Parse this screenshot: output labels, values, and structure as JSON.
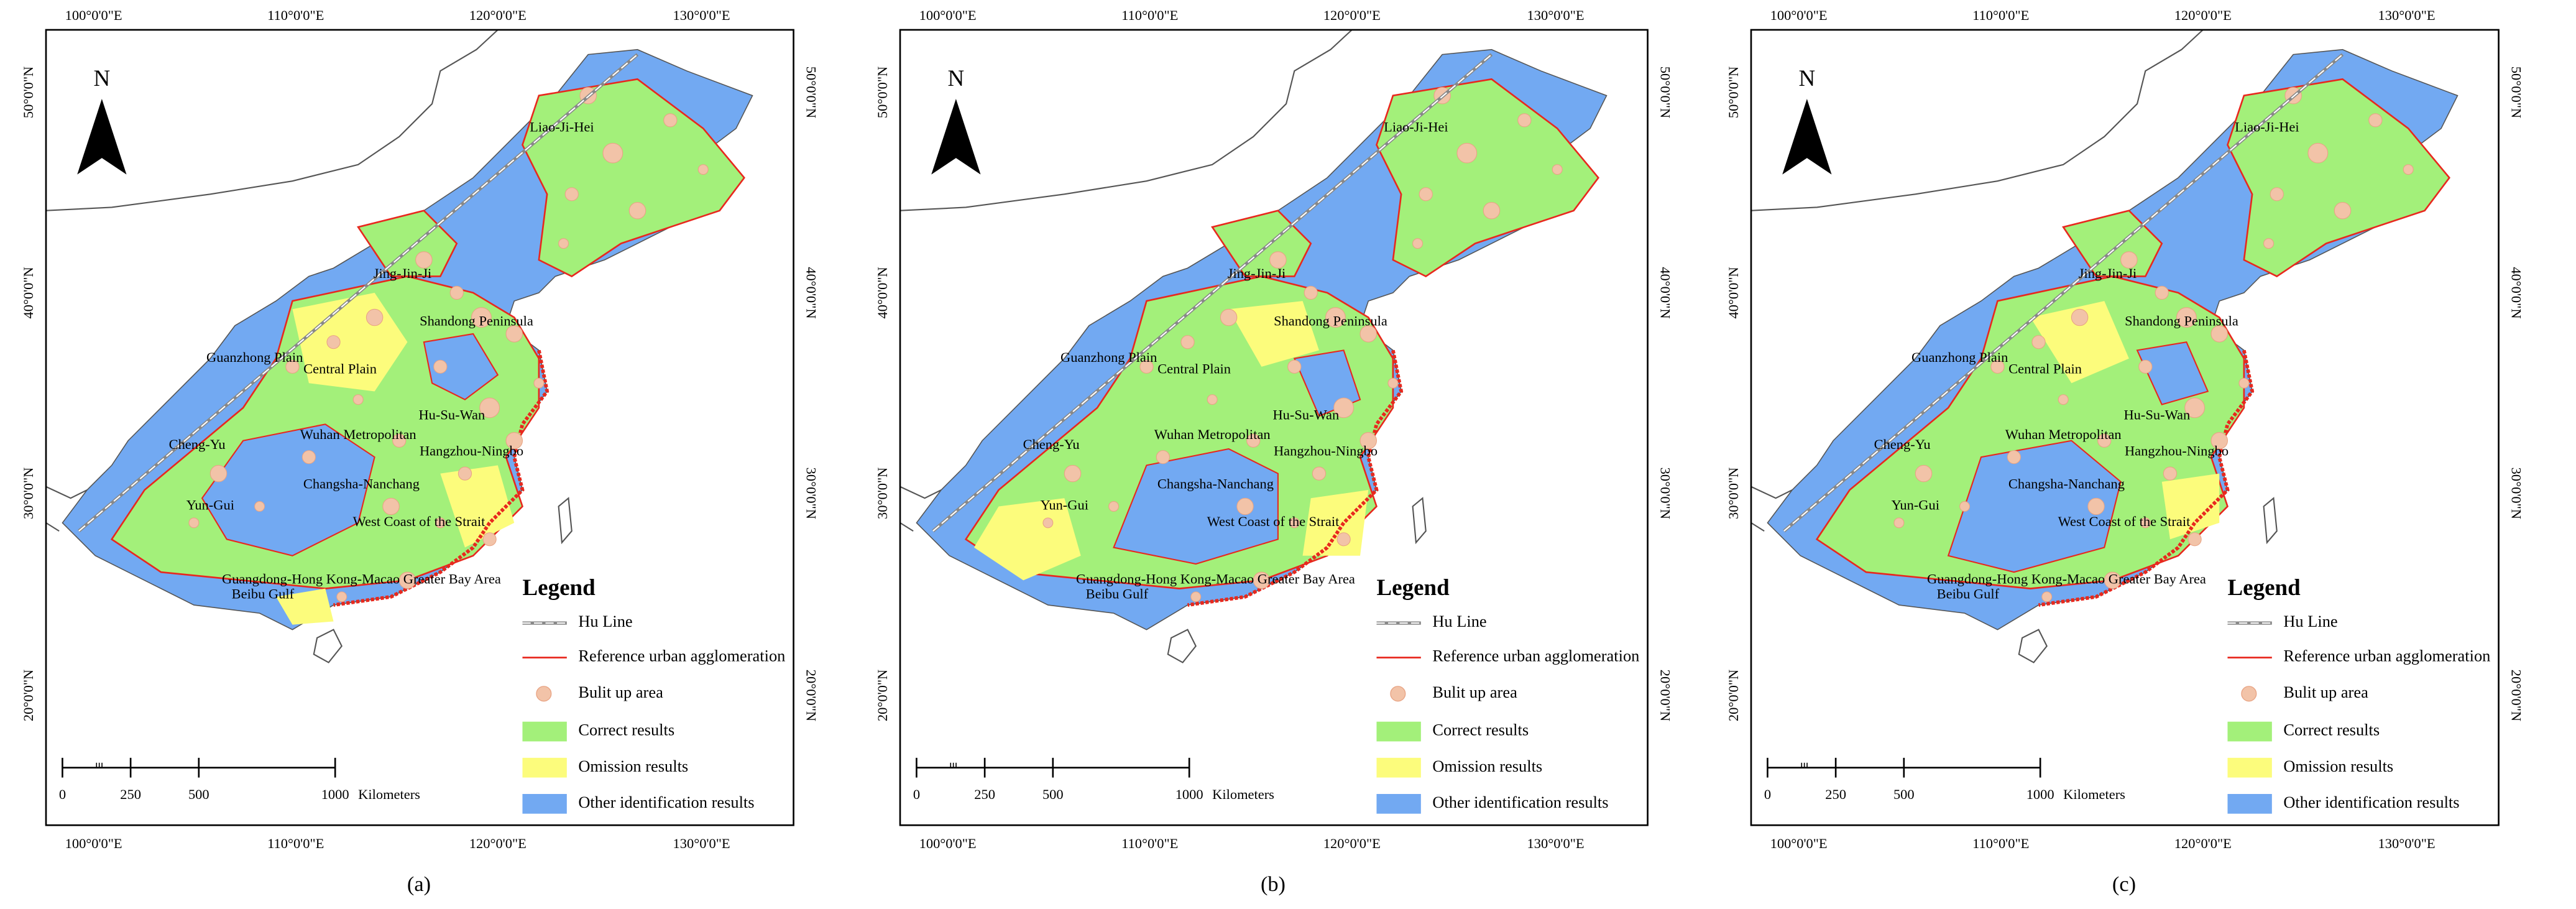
{
  "panels": [
    {
      "caption": "(a)"
    },
    {
      "caption": "(b)"
    },
    {
      "caption": "(c)"
    }
  ],
  "longitude_labels": [
    "100°0'0\"E",
    "110°0'0\"E",
    "120°0'0\"E",
    "130°0'0\"E"
  ],
  "latitude_labels": [
    "50°0'0\"N",
    "40°0'0\"N",
    "30°0'0\"N",
    "20°0'0\"N"
  ],
  "north": "N",
  "regions": [
    "Liao-Ji-Hei",
    "Jing-Jin-Ji",
    "Shandong Peninsula",
    "Guanzhong Plain",
    "Central Plain",
    "Hu-Su-Wan",
    "Wuhan Metropolitan",
    "Hangzhou-Ningbo",
    "Cheng-Yu",
    "Changsha-Nanchang",
    "Yun-Gui",
    "West Coast of the Strait",
    "Guangdong-Hong Kong-Macao Greater Bay Area",
    "Beibu Gulf"
  ],
  "legend": {
    "title": "Legend",
    "items": [
      "Hu Line",
      "Reference urban agglomeration",
      "Bulit up area",
      "Correct results",
      "Omission results",
      "Other identification results"
    ]
  },
  "scale_bar": {
    "ticks": [
      0,
      250,
      500,
      1000
    ],
    "unit": "Kilometers"
  }
}
